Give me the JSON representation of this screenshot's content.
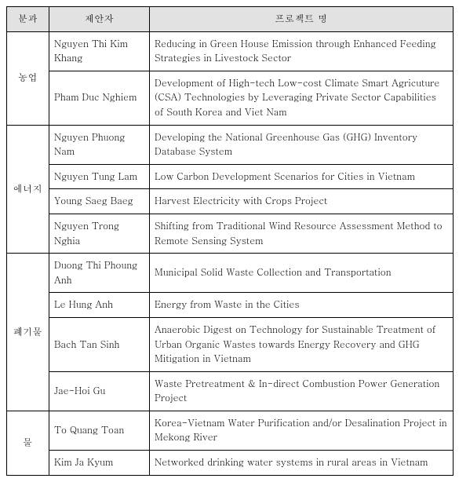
{
  "headers": {
    "c1": "분과",
    "c2": "제안자",
    "c3": "프로젝트 명"
  },
  "groups": [
    {
      "category": "농업",
      "rows": [
        {
          "proposer": "Nguyen Thi Kim Khang",
          "project": "Reducing in Green House Emission through Enhanced Feeding Strategies in Livestock Sector"
        },
        {
          "proposer": "Pham Duc Nghiem",
          "project": "Development of High-tech Low-cost Climate Smart Agricuture (CSA) Technologies by Leveraging Private Sector Capabilities of South Korea and Viet Nam"
        }
      ]
    },
    {
      "category": "에너지",
      "rows": [
        {
          "proposer": "Nguyen Phuong Nam",
          "project": "Developing the National Greenhouse Gas (GHG) Inventory Database System"
        },
        {
          "proposer": "Nguyen Tung Lam",
          "project": "Low Carbon Development Scenarios for Cities in Vietnam"
        },
        {
          "proposer": "Young Saeg Baeg",
          "project": "Harvest Electricity with Crops Project"
        },
        {
          "proposer": "Nguyen Trong Nghia",
          "project": "Shifting from Traditional Wind Resource Assessment Method to Remote Sensing System"
        }
      ]
    },
    {
      "category": "폐기물",
      "rows": [
        {
          "proposer": "Duong Thi Phoung Anh",
          "project": "Municipal Solid Waste Collection and Transportation"
        },
        {
          "proposer": "Le Hung Anh",
          "project": "Energy from Waste in the Cities"
        },
        {
          "proposer": "Bach Tan Sinh",
          "project": "Anaerobic Digest on Technology for Sustainable Treatment of Urban Organic Wastes towards Energy Recovery and GHG Mitigation in Vietnam"
        },
        {
          "proposer": "Jae-Hoi Gu",
          "project": "Waste Pretreatment & In-direct Combustion Power Generation Project"
        }
      ]
    },
    {
      "category": "물",
      "rows": [
        {
          "proposer": "To Quang Toan",
          "project": "Korea-Vietnam Water Purification and/or Desalination Project in Mekong River"
        },
        {
          "proposer": "Kim Ja Kyum",
          "project": "Networked drinking water systems in rural areas in Vietnam"
        }
      ]
    }
  ]
}
